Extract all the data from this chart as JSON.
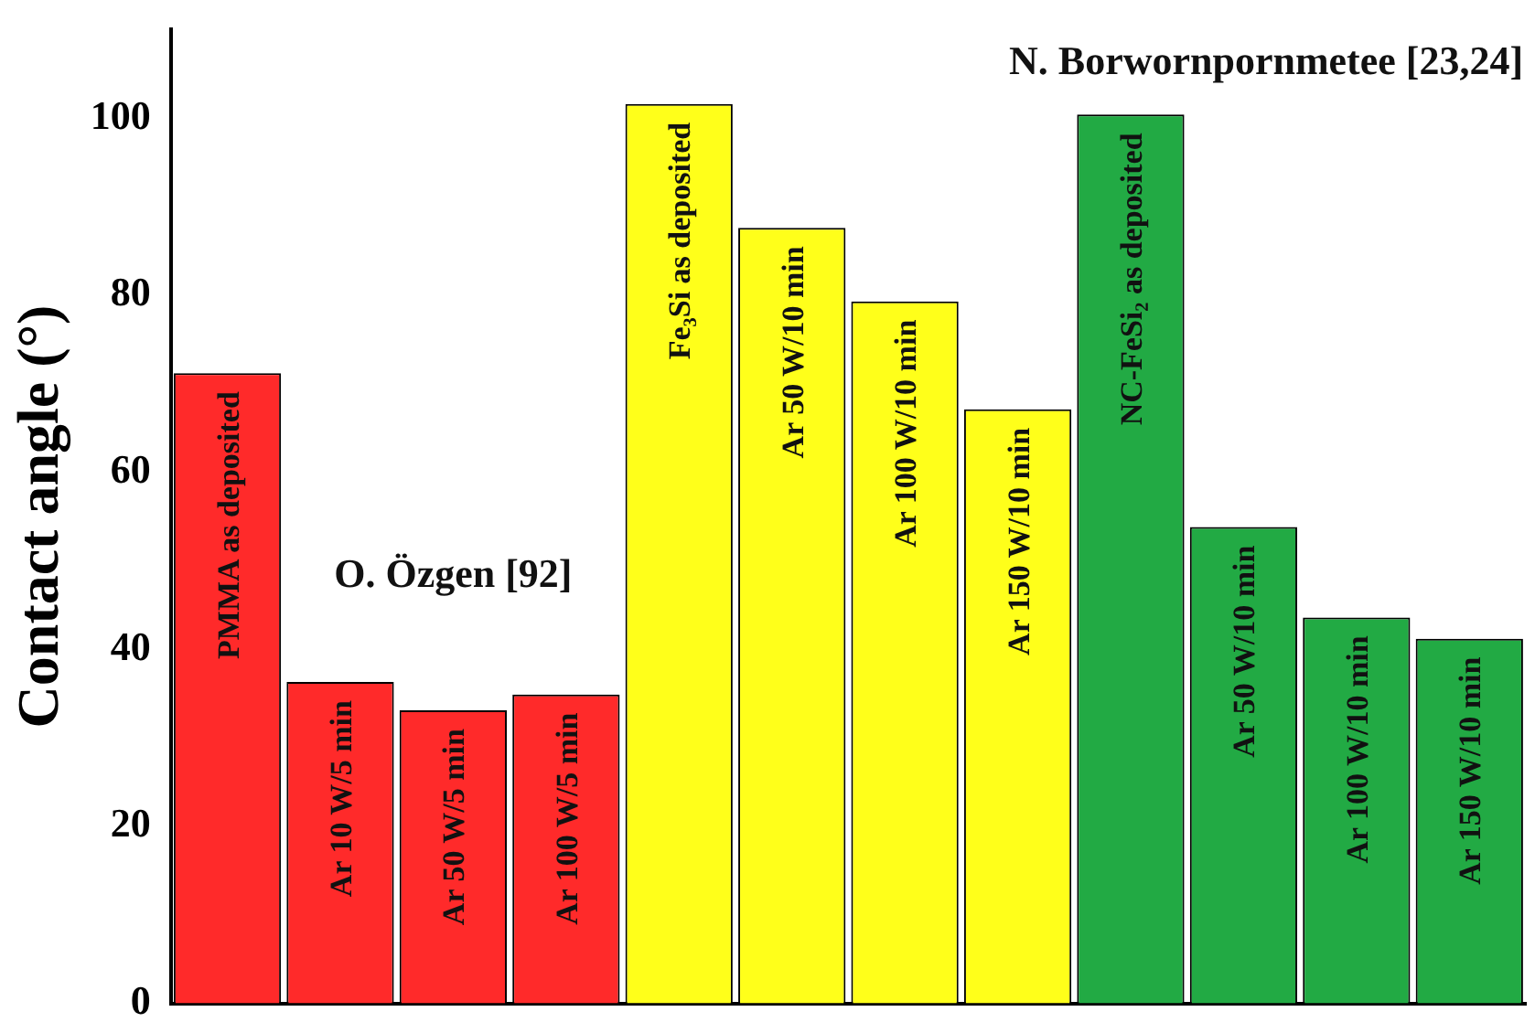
{
  "chart_data": {
    "type": "bar",
    "ylabel": "Contact angle (°)",
    "categories": [
      "PMMA as deposited",
      "Ar 10 W/5 min",
      "Ar 50 W/5 min",
      "Ar 100 W/5 min",
      "Fe₃Si as deposited",
      "Ar 50 W/10 min",
      "Ar 100 W/10 min",
      "Ar 150 W/10 min",
      "NC-FeSi₂ as deposited",
      "Ar 50 W/10 min",
      "Ar 100 W/10 min",
      "Ar 150 W/10 min"
    ],
    "values": [
      71.2,
      36.3,
      33.1,
      34.9,
      101.6,
      87.6,
      79.3,
      67.1,
      100.4,
      53.8,
      43.6,
      41.2
    ],
    "colors": [
      "#ff2a2a",
      "#ff2a2a",
      "#ff2a2a",
      "#ff2a2a",
      "#ffff1a",
      "#ffff1a",
      "#ffff1a",
      "#ffff1a",
      "#22aa44",
      "#22aa44",
      "#22aa44",
      "#22aa44"
    ],
    "ylim": [
      0,
      110
    ],
    "yticks": [
      0,
      20,
      40,
      60,
      80,
      100
    ],
    "grid": false,
    "legend": false,
    "tick_labels": "y",
    "annotations": [
      "O. Özgen [92]",
      "N. Borwornpornmetee [23,24]"
    ]
  }
}
